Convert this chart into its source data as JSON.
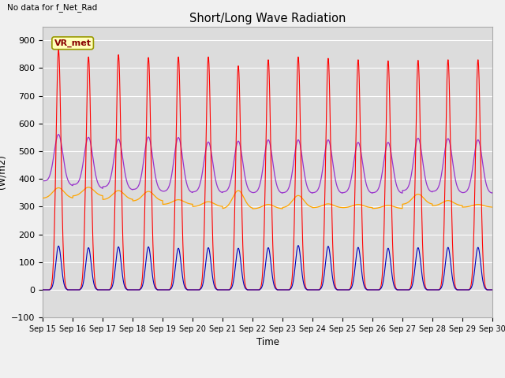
{
  "title": "Short/Long Wave Radiation",
  "xlabel": "Time",
  "ylabel": "(W/m2)",
  "ylim": [
    -100,
    950
  ],
  "yticks": [
    -100,
    0,
    100,
    200,
    300,
    400,
    500,
    600,
    700,
    800,
    900
  ],
  "date_start": 15,
  "date_end": 30,
  "n_days": 15,
  "annotation_no_data": "No data for f_Net_Rad",
  "legend_label": "VR_met",
  "sw_in_color": "#ff0000",
  "lw_in_color": "#ffa500",
  "sw_out_color": "#0000bb",
  "lw_out_color": "#9933cc",
  "bg_color": "#dcdcdc",
  "grid_color": "#ffffff",
  "fig_bg": "#f0f0f0",
  "sw_in_peak": [
    865,
    840,
    848,
    838,
    840,
    840,
    808,
    830,
    840,
    835,
    830,
    826,
    828,
    830,
    830
  ],
  "sw_out_peak": [
    158,
    152,
    155,
    155,
    150,
    152,
    150,
    152,
    160,
    157,
    153,
    150,
    152,
    153,
    153
  ],
  "lw_in_day": [
    368,
    370,
    358,
    355,
    325,
    318,
    358,
    308,
    340,
    310,
    308,
    305,
    345,
    322,
    308
  ],
  "lw_in_night": [
    330,
    338,
    325,
    320,
    308,
    300,
    292,
    292,
    296,
    296,
    296,
    293,
    308,
    303,
    298
  ],
  "lw_out_peak": [
    570,
    558,
    550,
    555,
    552,
    535,
    538,
    542,
    542,
    542,
    533,
    533,
    550,
    548,
    542
  ],
  "lw_out_night_start": [
    393,
    380,
    372,
    362,
    355,
    353,
    353,
    350,
    350,
    350,
    350,
    350,
    358,
    355,
    350
  ],
  "lw_out_night_end": [
    375,
    365,
    360,
    355,
    350,
    350,
    350,
    348,
    348,
    348,
    348,
    348,
    352,
    350,
    348
  ]
}
